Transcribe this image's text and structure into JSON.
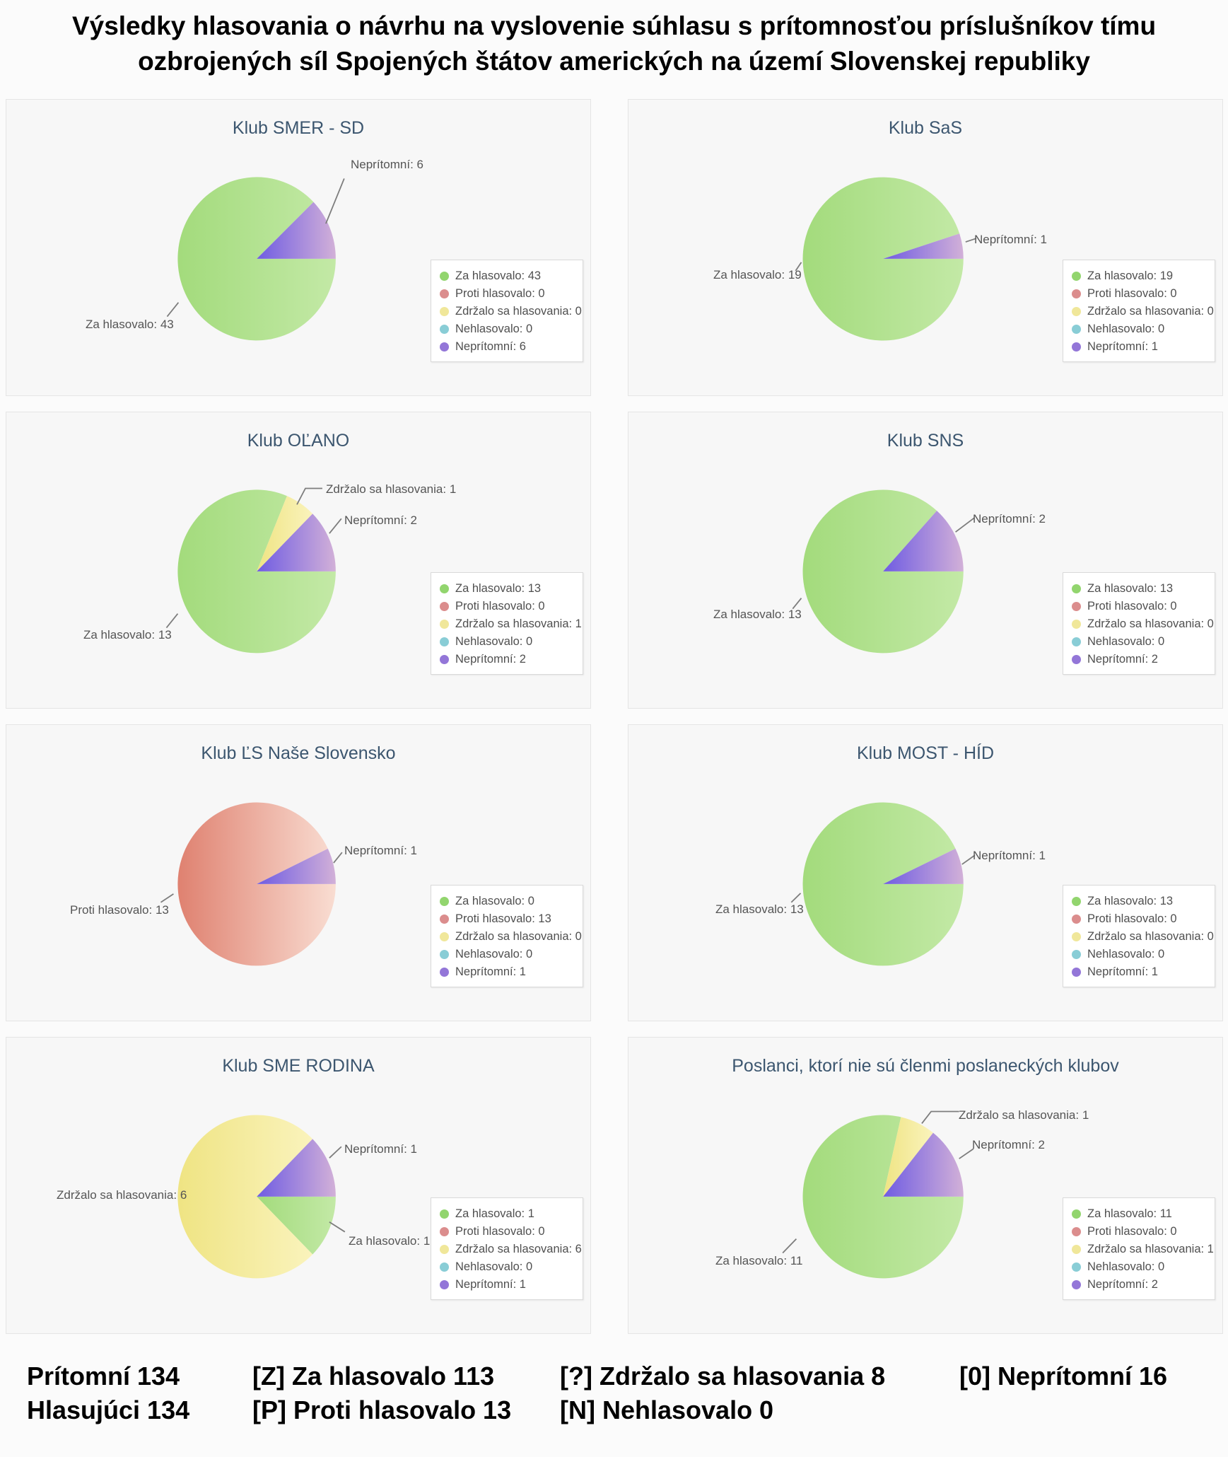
{
  "page_title": "Výsledky hlasovania o návrhu na vyslovenie súhlasu s prítomnosťou príslušníkov tímu ozbrojených síl Spojených štátov amerických na území Slovenskej republiky",
  "series": [
    {
      "name": "Za hlasovalo",
      "color_base": "#a3db7c",
      "color_light": "#c3e9a6",
      "marker": "#92d56e"
    },
    {
      "name": "Proti hlasovalo",
      "color_base": "#df8170",
      "color_light": "#f9ddd2",
      "marker": "#db8d8d"
    },
    {
      "name": "Zdržalo sa hlasovania",
      "color_base": "#efe483",
      "color_light": "#faf3bc",
      "marker": "#f0e79a"
    },
    {
      "name": "Nehlasovalo",
      "color_base": "#7cc7ce",
      "color_light": "#c8eaee",
      "marker": "#89cdd6"
    },
    {
      "name": "Neprítomní",
      "color_base": "#6f5ce2",
      "color_light": "#d2b0d8",
      "marker": "#9376d8"
    }
  ],
  "chart_data": [
    {
      "type": "pie",
      "title": "Klub SMER - SD",
      "legend_position": "right",
      "categories": [
        "Za hlasovalo",
        "Proti hlasovalo",
        "Zdržalo sa hlasovania",
        "Nehlasovalo",
        "Neprítomní"
      ],
      "values": [
        43,
        0,
        0,
        0,
        6
      ],
      "labels": [
        {
          "s": 4,
          "x": 487,
          "y": 82,
          "line": [
            [
              453,
              176
            ],
            [
              479,
              112
            ]
          ]
        },
        {
          "s": 0,
          "x": 112,
          "y": 308,
          "line": [
            [
              244,
              288
            ],
            [
              228,
              308
            ]
          ]
        }
      ]
    },
    {
      "type": "pie",
      "title": "Klub SaS",
      "legend_position": "right",
      "categories": [
        "Za hlasovalo",
        "Proti hlasovalo",
        "Zdržalo sa hlasovania",
        "Nehlasovalo",
        "Neprítomní"
      ],
      "values": [
        19,
        0,
        0,
        0,
        1
      ],
      "labels": [
        {
          "s": 4,
          "x": 489,
          "y": 188,
          "line": [
            [
              470,
              202
            ],
            [
              485,
              197
            ]
          ]
        },
        {
          "s": 0,
          "x": 120,
          "y": 238,
          "line": [
            [
              241,
              231
            ],
            [
              233,
              243
            ]
          ]
        }
      ]
    },
    {
      "type": "pie",
      "title": "Klub OĽANO",
      "legend_position": "right",
      "categories": [
        "Za hlasovalo",
        "Proti hlasovalo",
        "Zdržalo sa hlasovania",
        "Nehlasovalo",
        "Neprítomní"
      ],
      "values": [
        13,
        0,
        1,
        0,
        2
      ],
      "labels": [
        {
          "s": 2,
          "x": 452,
          "y": 99,
          "line": [
            [
              412,
              131
            ],
            [
              424,
              108
            ],
            [
              448,
              108
            ]
          ]
        },
        {
          "s": 4,
          "x": 478,
          "y": 143,
          "line": [
            [
              458,
              172
            ],
            [
              475,
              151
            ]
          ]
        },
        {
          "s": 0,
          "x": 109,
          "y": 305,
          "line": [
            [
              243,
              286
            ],
            [
              227,
              306
            ]
          ]
        }
      ]
    },
    {
      "type": "pie",
      "title": "Klub SNS",
      "legend_position": "right",
      "categories": [
        "Za hlasovalo",
        "Proti hlasovalo",
        "Zdržalo sa hlasovania",
        "Nehlasovalo",
        "Neprítomní"
      ],
      "values": [
        13,
        0,
        0,
        0,
        2
      ],
      "labels": [
        {
          "s": 4,
          "x": 487,
          "y": 141,
          "line": [
            [
              456,
              170
            ],
            [
              482,
              150
            ]
          ]
        },
        {
          "s": 0,
          "x": 120,
          "y": 276,
          "line": [
            [
              241,
              264
            ],
            [
              229,
              279
            ]
          ]
        }
      ]
    },
    {
      "type": "pie",
      "title": "Klub ĽS Naše Slovensko",
      "legend_position": "right",
      "categories": [
        "Za hlasovalo",
        "Proti hlasovalo",
        "Zdržalo sa hlasovania",
        "Nehlasovalo",
        "Neprítomní"
      ],
      "values": [
        0,
        13,
        0,
        0,
        1
      ],
      "labels": [
        {
          "s": 4,
          "x": 478,
          "y": 168,
          "line": [
            [
              464,
              196
            ],
            [
              476,
              181
            ]
          ]
        },
        {
          "s": 1,
          "x": 90,
          "y": 252,
          "line": [
            [
              237,
              240
            ],
            [
              219,
              252
            ]
          ]
        }
      ]
    },
    {
      "type": "pie",
      "title": "Klub MOST - HÍD",
      "legend_position": "right",
      "categories": [
        "Za hlasovalo",
        "Proti hlasovalo",
        "Zdržalo sa hlasovania",
        "Nehlasovalo",
        "Neprítomní"
      ],
      "values": [
        13,
        0,
        0,
        0,
        1
      ],
      "labels": [
        {
          "s": 4,
          "x": 487,
          "y": 175,
          "line": [
            [
              465,
              198
            ],
            [
              483,
              185
            ]
          ]
        },
        {
          "s": 0,
          "x": 123,
          "y": 251,
          "line": [
            [
              240,
              239
            ],
            [
              227,
              252
            ]
          ]
        }
      ]
    },
    {
      "type": "pie",
      "title": "Klub SME RODINA",
      "legend_position": "right",
      "categories": [
        "Za hlasovalo",
        "Proti hlasovalo",
        "Zdržalo sa hlasovania",
        "Nehlasovalo",
        "Neprítomní"
      ],
      "values": [
        1,
        0,
        6,
        0,
        1
      ],
      "labels": [
        {
          "s": 4,
          "x": 478,
          "y": 148,
          "line": [
            [
              458,
              171
            ],
            [
              475,
              155
            ]
          ]
        },
        {
          "s": 2,
          "x": 71,
          "y": 213
        },
        {
          "s": 0,
          "x": 484,
          "y": 278,
          "line": [
            [
              458,
              262
            ],
            [
              480,
              276
            ]
          ]
        }
      ]
    },
    {
      "type": "pie",
      "title": "Poslanci, ktorí nie sú členmi poslaneckých klubov",
      "legend_position": "right",
      "categories": [
        "Za hlasovalo",
        "Proti hlasovalo",
        "Zdržalo sa hlasovania",
        "Nehlasovalo",
        "Neprítomní"
      ],
      "values": [
        11,
        0,
        1,
        0,
        2
      ],
      "labels": [
        {
          "s": 2,
          "x": 467,
          "y": 100,
          "line": [
            [
              409,
              122
            ],
            [
              422,
              105
            ],
            [
              461,
              105
            ]
          ]
        },
        {
          "s": 4,
          "x": 486,
          "y": 142,
          "line": [
            [
              461,
              172
            ],
            [
              481,
              158
            ]
          ]
        },
        {
          "s": 0,
          "x": 123,
          "y": 306,
          "line": [
            [
              234,
              286
            ],
            [
              215,
              306
            ]
          ]
        }
      ]
    }
  ],
  "summary": {
    "columns": [
      [
        "Prítomní 134",
        "Hlasujúci 134"
      ],
      [
        "[Z] Za hlasovalo 113",
        "[P] Proti hlasovalo 13"
      ],
      [
        "[?] Zdržalo sa hlasovania 8",
        "[N] Nehlasovalo 0"
      ],
      [
        "[0] Neprítomní 16"
      ]
    ]
  }
}
